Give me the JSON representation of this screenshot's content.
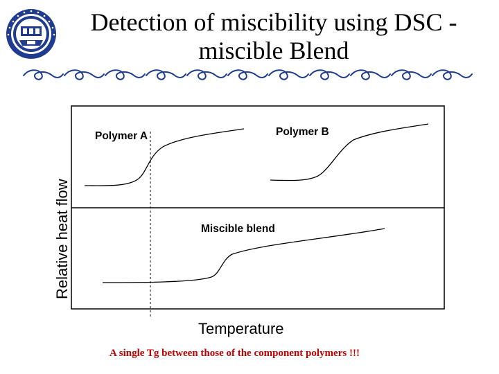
{
  "slide": {
    "title": "Detection of miscibility using DSC - miscible Blend",
    "caption": "A single Tg between those of the component polymers !!!",
    "logo_icon": "university-seal-icon",
    "divider_icon": "ornamental-swirl-divider-icon"
  },
  "diagram": {
    "axis_x_label": "Temperature",
    "axis_y_label": "Relative heat flow",
    "panels": {
      "polymer_a": "Polymer A",
      "polymer_b": "Polymer B",
      "miscible_blend": "Miscible blend"
    },
    "line_color": "#000000"
  },
  "colors": {
    "caption": "#c00000",
    "logo_blue": "#1f3c8f"
  }
}
